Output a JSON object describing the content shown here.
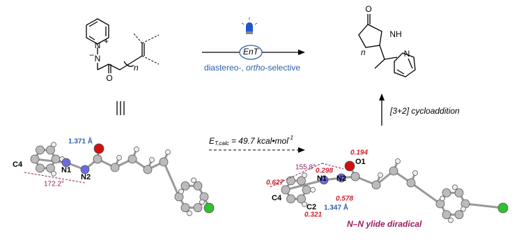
{
  "reaction": {
    "catalyst_label": "EnT",
    "selectivity": {
      "prefix": "diastereo-, ",
      "italic": "ortho",
      "suffix": "-selective"
    },
    "step2": "[3+2] cycloaddition",
    "energy": {
      "symbol": "E",
      "subscript": "T,calc",
      "text": " = 49.7 kcal•mol",
      "superscript": "-1"
    }
  },
  "reactant": {
    "n_plus": "N",
    "plus": "+",
    "n_minus": "N",
    "minus": "−",
    "oxygen": "O",
    "repeat": "n"
  },
  "product": {
    "oxygen": "O",
    "nh": "NH",
    "repeat": "n",
    "pyridine_n": "N"
  },
  "left_model": {
    "bond_length": "1.371 Å",
    "c4": "C4",
    "n1": "N1",
    "n2": "N2",
    "angle": "172.2°"
  },
  "right_model": {
    "angle": "155.8°",
    "spin_n1": "0.298",
    "spin_c4": "0.627",
    "o1": "O1",
    "spin_o1": "0.194",
    "n1": "N1",
    "n2": "N2",
    "c4": "C4",
    "c2": "C2",
    "spin_c2": "0.321",
    "spin_n2": "0.578",
    "bond_length": "1.347 Å",
    "caption": "N–N ylide diradical"
  }
}
